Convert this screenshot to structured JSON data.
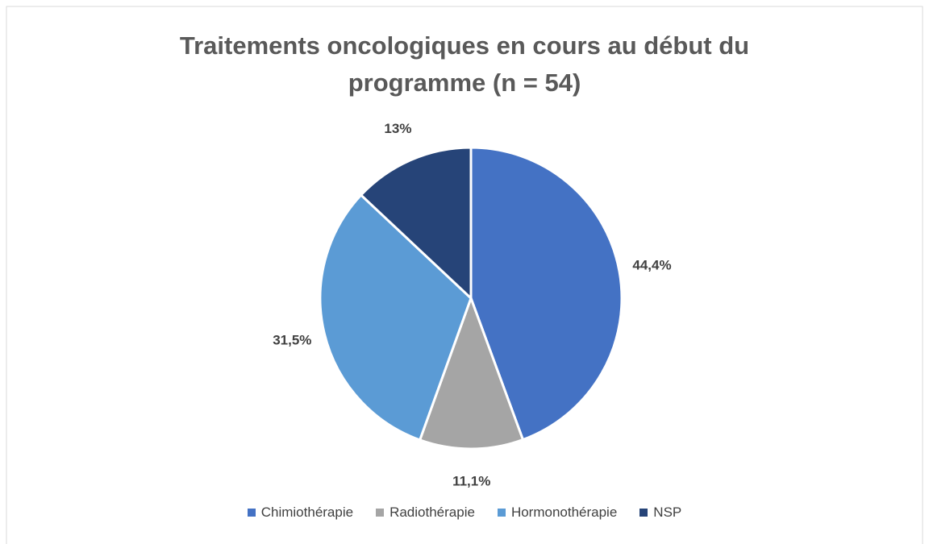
{
  "chart_data": {
    "type": "pie",
    "title": "Traitements oncologiques en cours au début du programme (n = 54)",
    "categories": [
      "Chimiothérapie",
      "Radiothérapie",
      "Hormonothérapie",
      "NSP"
    ],
    "values": [
      44.4,
      11.1,
      31.5,
      13
    ],
    "value_labels": [
      "44,4%",
      "11,1%",
      "31,5%",
      "13%"
    ],
    "colors": [
      "#4472c4",
      "#a5a5a5",
      "#5b9bd5",
      "#264478"
    ],
    "legend": "bottom"
  }
}
